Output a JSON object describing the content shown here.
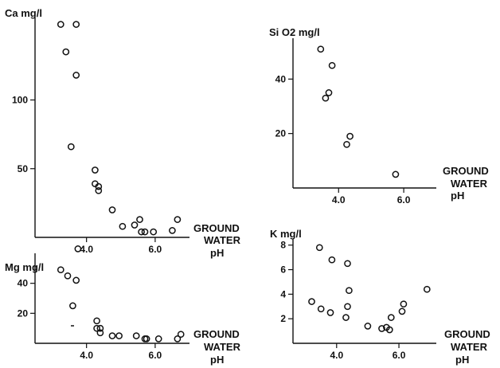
{
  "chart_data": [
    {
      "id": "ca",
      "type": "scatter",
      "ylabel": "Ca mg/l",
      "xlabel": [
        "GROUND",
        "WATER",
        "pH"
      ],
      "xticks": [
        4.0,
        6.0
      ],
      "xtick_labels": [
        "4.0",
        "6.0"
      ],
      "yticks": [
        50,
        100
      ],
      "ytick_labels": [
        "50",
        "100"
      ],
      "xlim": [
        2.5,
        7.0
      ],
      "ylim": [
        0,
        160
      ],
      "points": [
        [
          3.25,
          155
        ],
        [
          3.7,
          155
        ],
        [
          3.4,
          135
        ],
        [
          3.7,
          118
        ],
        [
          3.55,
          66
        ],
        [
          4.25,
          49
        ],
        [
          4.25,
          39
        ],
        [
          4.35,
          37
        ],
        [
          4.35,
          34
        ],
        [
          4.75,
          20
        ],
        [
          5.05,
          8
        ],
        [
          5.4,
          9
        ],
        [
          5.55,
          13
        ],
        [
          5.6,
          4
        ],
        [
          5.7,
          4
        ],
        [
          5.95,
          4
        ],
        [
          6.5,
          5
        ],
        [
          6.65,
          13
        ]
      ],
      "grid": false
    },
    {
      "id": "sio2",
      "type": "scatter",
      "ylabel": "Si O2 mg/l",
      "xlabel": [
        "GROUND",
        "WATER",
        "pH"
      ],
      "xticks": [
        4.0,
        6.0
      ],
      "xtick_labels": [
        "4.0",
        "6.0"
      ],
      "yticks": [
        20,
        40
      ],
      "ytick_labels": [
        "20",
        "40"
      ],
      "xlim": [
        2.6,
        7.0
      ],
      "ylim": [
        0,
        55
      ],
      "points": [
        [
          3.45,
          51
        ],
        [
          3.6,
          33
        ],
        [
          3.7,
          35
        ],
        [
          3.8,
          45
        ],
        [
          4.25,
          16
        ],
        [
          4.35,
          19
        ],
        [
          5.75,
          5
        ]
      ],
      "grid": false
    },
    {
      "id": "mg",
      "type": "scatter",
      "ylabel": "Mg mg/l",
      "xlabel": [
        "GROUND",
        "WATER",
        "pH"
      ],
      "xticks": [
        4.0,
        6.0
      ],
      "xtick_labels": [
        "4.0",
        "6.0"
      ],
      "yticks": [
        20,
        40
      ],
      "ytick_labels": [
        "20",
        "40"
      ],
      "xlim": [
        2.5,
        7.0
      ],
      "ylim": [
        0,
        60
      ],
      "points": [
        [
          3.75,
          63
        ],
        [
          3.25,
          49
        ],
        [
          3.45,
          45
        ],
        [
          3.7,
          42
        ],
        [
          3.6,
          25
        ],
        [
          4.3,
          15
        ],
        [
          4.3,
          10
        ],
        [
          4.4,
          10
        ],
        [
          4.4,
          7
        ],
        [
          4.75,
          5
        ],
        [
          4.95,
          5
        ],
        [
          5.45,
          5
        ],
        [
          5.7,
          3
        ],
        [
          5.75,
          3
        ],
        [
          6.1,
          3
        ],
        [
          6.65,
          3
        ],
        [
          6.75,
          6
        ]
      ],
      "grid": false
    },
    {
      "id": "k",
      "type": "scatter",
      "ylabel": "K mg/l",
      "xlabel": [
        "GROUND",
        "WATER",
        "pH"
      ],
      "xticks": [
        4.0,
        6.0
      ],
      "xtick_labels": [
        "4.0",
        "6.0"
      ],
      "yticks": [
        2,
        4,
        6,
        8
      ],
      "ytick_labels": [
        "2",
        "4",
        "6",
        "8"
      ],
      "xlim": [
        2.6,
        7.2
      ],
      "ylim": [
        0,
        8.5
      ],
      "points": [
        [
          3.45,
          7.8
        ],
        [
          3.85,
          6.8
        ],
        [
          4.35,
          6.5
        ],
        [
          4.4,
          4.3
        ],
        [
          3.2,
          3.4
        ],
        [
          3.5,
          2.8
        ],
        [
          3.8,
          2.5
        ],
        [
          4.35,
          3.0
        ],
        [
          4.3,
          2.1
        ],
        [
          5.0,
          1.4
        ],
        [
          5.45,
          1.2
        ],
        [
          5.6,
          1.3
        ],
        [
          5.7,
          1.1
        ],
        [
          5.75,
          2.1
        ],
        [
          6.1,
          2.6
        ],
        [
          6.15,
          3.2
        ],
        [
          6.9,
          4.4
        ]
      ],
      "grid": false
    }
  ]
}
